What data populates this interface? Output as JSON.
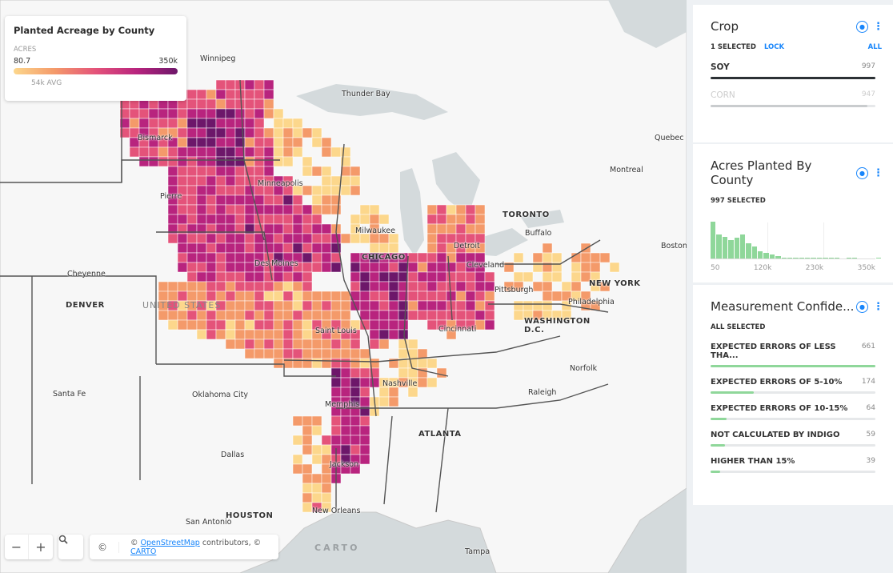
{
  "legend": {
    "title": "Planted Acreage by County",
    "unit": "ACRES",
    "min": "80.7",
    "max": "350k",
    "avg": "54k AVG",
    "colors": [
      "#fcd78c",
      "#f49a6a",
      "#e4537a",
      "#b8247e",
      "#6d176a"
    ]
  },
  "map": {
    "cities": [
      {
        "name": "Winnipeg",
        "big": false
      },
      {
        "name": "Thunder Bay",
        "big": false
      },
      {
        "name": "Bismarck",
        "big": false
      },
      {
        "name": "Quebec",
        "big": false
      },
      {
        "name": "Montreal",
        "big": false
      },
      {
        "name": "Minneapolis",
        "big": false
      },
      {
        "name": "Pierre",
        "big": false
      },
      {
        "name": "TORONTO",
        "big": true
      },
      {
        "name": "Buffalo",
        "big": false
      },
      {
        "name": "Boston",
        "big": false
      },
      {
        "name": "Milwaukee",
        "big": false
      },
      {
        "name": "Detroit",
        "big": false
      },
      {
        "name": "CHICAGO",
        "big": true
      },
      {
        "name": "Cleveland",
        "big": false
      },
      {
        "name": "Cheyenne",
        "big": false
      },
      {
        "name": "Des Moines",
        "big": false
      },
      {
        "name": "NEW YORK",
        "big": true
      },
      {
        "name": "Pittsburgh",
        "big": false
      },
      {
        "name": "DENVER",
        "big": true
      },
      {
        "name": "Philadelphia",
        "big": false
      },
      {
        "name": "WASHINGTON D.C.",
        "big": true
      },
      {
        "name": "Saint Louis",
        "big": false
      },
      {
        "name": "Cincinnati",
        "big": false
      },
      {
        "name": "Norfolk",
        "big": false
      },
      {
        "name": "Nashville",
        "big": false
      },
      {
        "name": "Santa Fe",
        "big": false
      },
      {
        "name": "Oklahoma City",
        "big": false
      },
      {
        "name": "Raleigh",
        "big": false
      },
      {
        "name": "Memphis",
        "big": false
      },
      {
        "name": "ATLANTA",
        "big": true
      },
      {
        "name": "Dallas",
        "big": false
      },
      {
        "name": "Jackson",
        "big": false
      },
      {
        "name": "HOUSTON",
        "big": true
      },
      {
        "name": "San Antonio",
        "big": false
      },
      {
        "name": "New Orleans",
        "big": false
      },
      {
        "name": "Tampa",
        "big": false
      }
    ],
    "country_label": "UNITED STATES",
    "zoom_out": "−",
    "zoom_in": "+",
    "search_icon": "search-icon",
    "attribution_icon": "©",
    "attribution_prefix": "© ",
    "osm": "OpenStreetMap",
    "attribution_mid": " contributors, © ",
    "carto": "CARTO",
    "watermark": "CARTO"
  },
  "widgets": {
    "crop": {
      "title": "Crop",
      "selected": "1 SELECTED",
      "lock": "LOCK",
      "all": "ALL",
      "items": [
        {
          "label": "SOY",
          "count": "997",
          "fraction": 1.0,
          "active": true
        },
        {
          "label": "CORN",
          "count": "947",
          "fraction": 0.95,
          "active": false
        }
      ]
    },
    "acres": {
      "title": "Acres Planted By County",
      "selected": "997 SELECTED",
      "axis": [
        "50",
        "120k",
        "230k",
        "350k"
      ],
      "histogram": [
        46,
        30,
        27,
        23,
        26,
        30,
        19,
        15,
        9,
        7,
        5,
        3,
        1,
        1,
        1,
        1,
        1,
        1,
        1,
        1,
        1,
        1,
        0,
        1,
        1,
        0,
        0,
        0,
        1
      ],
      "bar_color": "#8fd79a"
    },
    "confidence": {
      "title": "Measurement Confide...",
      "selected": "ALL SELECTED",
      "bar_color": "#8fd79a",
      "items": [
        {
          "label": "EXPECTED ERRORS OF LESS THA...",
          "count": "661"
        },
        {
          "label": "EXPECTED ERRORS OF 5-10%",
          "count": "174"
        },
        {
          "label": "EXPECTED ERRORS OF 10-15%",
          "count": "64"
        },
        {
          "label": "NOT CALCULATED BY INDIGO",
          "count": "59"
        },
        {
          "label": "HIGHER THAN 15%",
          "count": "39"
        }
      ]
    }
  }
}
